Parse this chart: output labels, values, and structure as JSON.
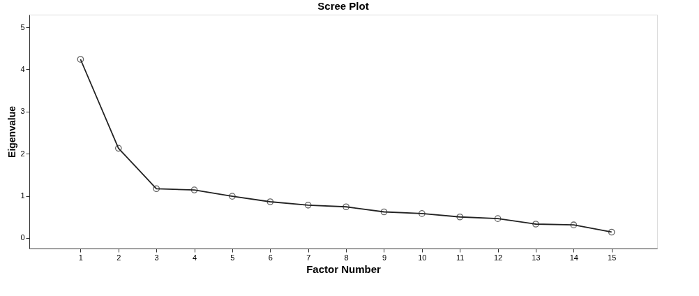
{
  "chart_data": {
    "type": "line",
    "title": "Scree Plot",
    "xlabel": "Factor Number",
    "ylabel": "Eigenvalue",
    "x": [
      1,
      2,
      3,
      4,
      5,
      6,
      7,
      8,
      9,
      10,
      11,
      12,
      13,
      14,
      15
    ],
    "series": [
      {
        "color": "#222222",
        "values": [
          4.24,
          2.13,
          1.17,
          1.14,
          0.99,
          0.86,
          0.78,
          0.74,
          0.62,
          0.58,
          0.5,
          0.46,
          0.33,
          0.31,
          0.14
        ]
      }
    ],
    "xlim": [
      -0.35,
      16.2
    ],
    "xticks": [
      1,
      2,
      3,
      4,
      5,
      6,
      7,
      8,
      9,
      10,
      11,
      12,
      13,
      14,
      15
    ],
    "ylim": [
      -0.25,
      5.3
    ],
    "yticks": [
      0,
      1,
      2,
      3,
      4,
      5
    ],
    "marker": "circle",
    "grid": false
  }
}
